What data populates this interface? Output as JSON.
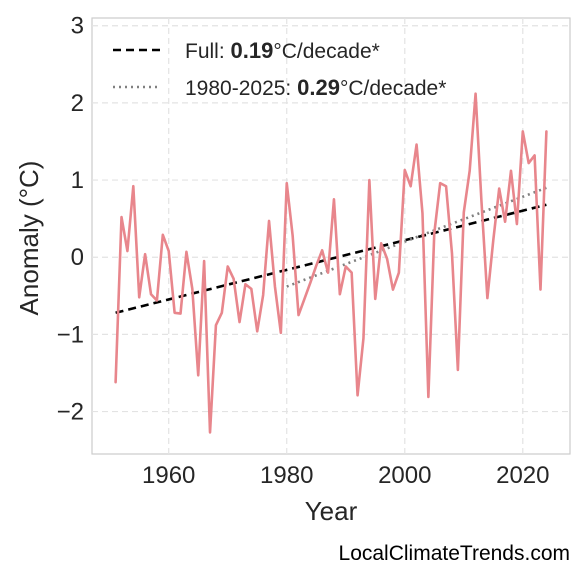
{
  "chart_data": {
    "type": "line",
    "xlabel": "Year",
    "ylabel": "Anomaly (°C)",
    "xlim": [
      1947,
      2028
    ],
    "ylim": [
      -2.55,
      3.1
    ],
    "xticks": [
      1960,
      1980,
      2000,
      2020
    ],
    "yticks": [
      3,
      2,
      1,
      0,
      -1,
      -2
    ],
    "ytick_labels": [
      "3",
      "2",
      "1",
      "0",
      "−1",
      "−2"
    ],
    "grid": true,
    "legend_position": "top-left",
    "series": [
      {
        "color": "#e8868c",
        "x": [
          1951,
          1952,
          1953,
          1954,
          1955,
          1956,
          1957,
          1958,
          1959,
          1960,
          1961,
          1962,
          1963,
          1964,
          1965,
          1966,
          1967,
          1968,
          1969,
          1970,
          1971,
          1972,
          1973,
          1974,
          1975,
          1976,
          1977,
          1978,
          1979,
          1980,
          1981,
          1982,
          1983,
          1984,
          1985,
          1986,
          1987,
          1988,
          1989,
          1990,
          1991,
          1992,
          1993,
          1994,
          1995,
          1996,
          1997,
          1998,
          1999,
          2000,
          2001,
          2002,
          2003,
          2004,
          2005,
          2006,
          2007,
          2008,
          2009,
          2010,
          2011,
          2012,
          2013,
          2014,
          2015,
          2016,
          2017,
          2018,
          2019,
          2020,
          2021,
          2022,
          2023,
          2024
        ],
        "values": [
          -1.62,
          0.52,
          0.08,
          0.92,
          -0.52,
          0.04,
          -0.48,
          -0.56,
          0.29,
          0.08,
          -0.72,
          -0.73,
          0.07,
          -0.41,
          -1.53,
          -0.05,
          -2.27,
          -0.88,
          -0.72,
          -0.12,
          -0.28,
          -0.84,
          -0.35,
          -0.41,
          -0.96,
          -0.49,
          0.47,
          -0.38,
          -0.98,
          0.96,
          0.28,
          -0.75,
          -0.54,
          -0.33,
          -0.11,
          0.09,
          -0.2,
          0.75,
          -0.48,
          -0.12,
          -0.2,
          -1.79,
          -1.05,
          1.0,
          -0.54,
          0.18,
          -0.02,
          -0.42,
          -0.2,
          1.13,
          0.92,
          1.46,
          0.57,
          -1.81,
          0.31,
          0.96,
          0.92,
          0.05,
          -1.46,
          0.58,
          1.12,
          2.12,
          0.72,
          -0.53,
          0.22,
          0.89,
          0.46,
          1.12,
          0.43,
          1.63,
          1.22,
          1.32,
          -0.42,
          1.63
        ]
      }
    ],
    "trendlines": [
      {
        "label": "Full: ",
        "rate": "0.19",
        "unit": "°C/decade*",
        "style": "dashed",
        "color": "#000000",
        "x": [
          1951,
          2024
        ],
        "y": [
          -0.72,
          0.68
        ]
      },
      {
        "label": "1980-2025: ",
        "rate": "0.29",
        "unit": "°C/decade*",
        "style": "dotted",
        "color": "#808080",
        "x": [
          1980,
          2024
        ],
        "y": [
          -0.38,
          0.9
        ]
      }
    ],
    "credit": "LocalClimateTrends.com"
  }
}
